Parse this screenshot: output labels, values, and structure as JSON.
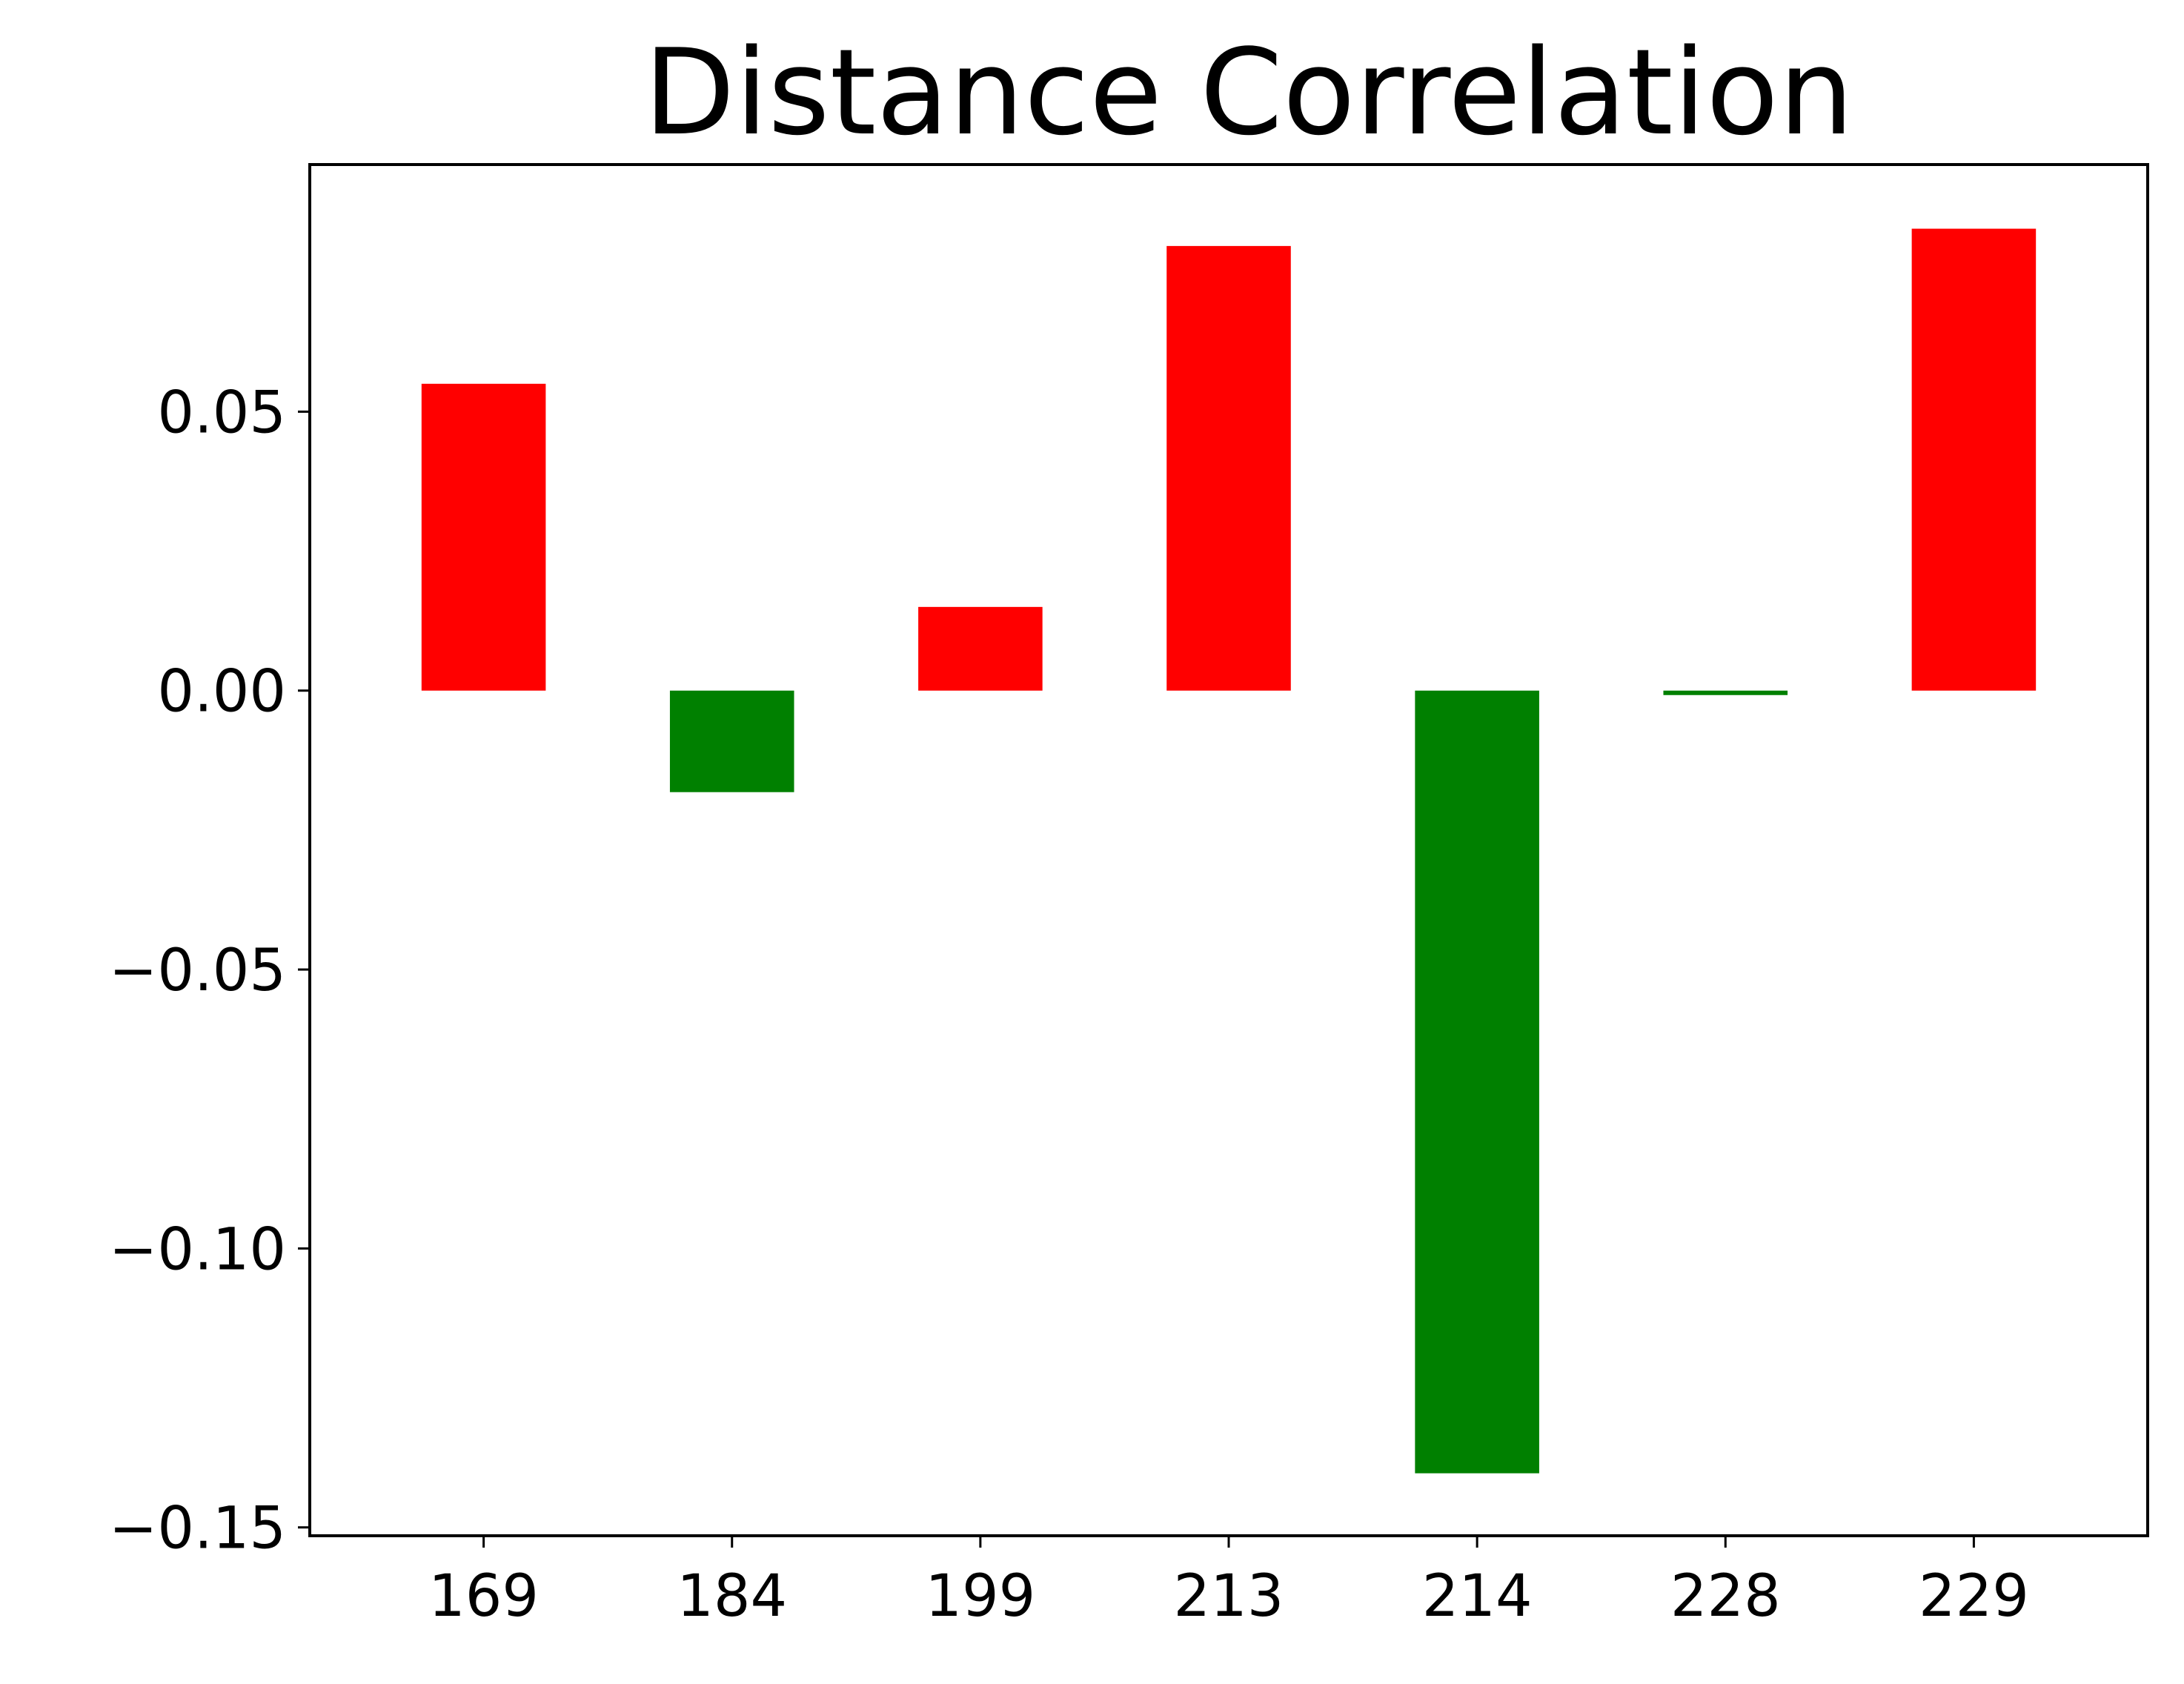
{
  "chart_data": {
    "type": "bar",
    "title": "Distance Correlation",
    "xlabel": "",
    "ylabel": "",
    "categories": [
      "169",
      "184",
      "199",
      "213",
      "214",
      "228",
      "229"
    ],
    "values": [
      0.055,
      -0.0182,
      0.015,
      0.0797,
      -0.1403,
      -0.0008,
      0.0828
    ],
    "colors": [
      "#ff0000",
      "#008000",
      "#ff0000",
      "#ff0000",
      "#008000",
      "#008000",
      "#ff0000"
    ],
    "positive_color": "#ff0000",
    "negative_color": "#008000",
    "ylim": [
      -0.1515,
      0.0943
    ],
    "yticks": [
      0.05,
      0.0,
      -0.05,
      -0.1,
      -0.15
    ],
    "ytick_labels": [
      "0.05",
      "0.00",
      "−0.05",
      "−0.10",
      "−0.15"
    ],
    "grid": false,
    "legend": "none"
  }
}
